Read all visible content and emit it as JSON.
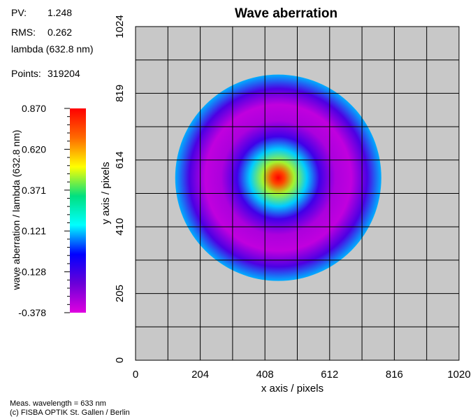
{
  "info": {
    "pv_label": "PV:",
    "pv_value": "1.248",
    "rms_label": "RMS:",
    "rms_value": "0.262",
    "unit": "lambda (632.8 nm)",
    "points_label": "Points:",
    "points_value": "319204"
  },
  "footer": {
    "line1": "Meas. wavelength = 633 nm",
    "line2": "(c) FISBA OPTIK St. Gallen / Berlin"
  },
  "colors": {
    "background": "#c8c8c8",
    "grid": "#000000",
    "colormap": [
      "#ff0000",
      "#ff6a00",
      "#ffff00",
      "#00e080",
      "#00ffff",
      "#0000ff",
      "#6a00d8",
      "#e000e0"
    ]
  },
  "chart_data": {
    "type": "heatmap",
    "title": "Wave aberration",
    "xlabel": "x axis / pixels",
    "ylabel": "y axis / pixels",
    "xlim": [
      0,
      1020
    ],
    "ylim": [
      0,
      1024
    ],
    "x_ticks": [
      "0",
      "204",
      "408",
      "612",
      "816",
      "1020"
    ],
    "y_ticks": [
      "0",
      "205",
      "410",
      "614",
      "819",
      "1024"
    ],
    "grid": true,
    "aperture": {
      "center_x": 450,
      "center_y": 560,
      "radius": 325
    },
    "profile": {
      "radius_px": [
        0,
        20,
        50,
        90,
        130,
        180,
        230,
        280,
        325
      ],
      "value": [
        0.87,
        0.75,
        0.45,
        0.121,
        -0.128,
        -0.3,
        -0.33,
        -0.15,
        0.1
      ]
    },
    "colorbar": {
      "label": "wave aberration / lambda (632.8 nm)",
      "ticks": [
        "0.870",
        "0.620",
        "0.371",
        "0.121",
        "-0.128",
        "-0.378"
      ],
      "min": -0.378,
      "max": 0.87
    }
  }
}
